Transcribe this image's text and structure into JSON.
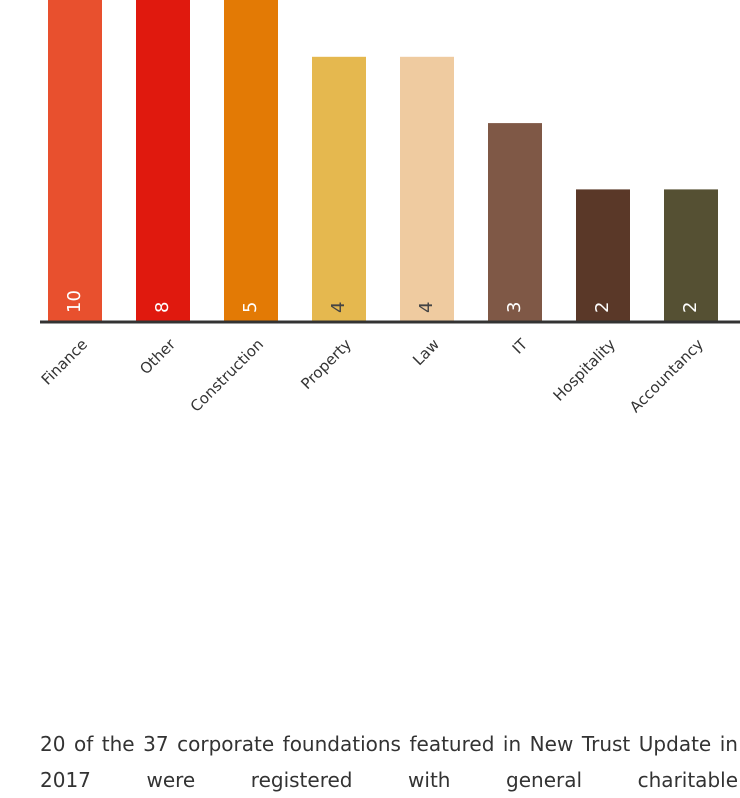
{
  "chart_data": {
    "type": "bar",
    "categories": [
      "Finance",
      "Other",
      "Construction",
      "Property",
      "Law",
      "IT",
      "Hospitality",
      "Accountancy"
    ],
    "values": [
      10,
      8,
      5,
      4,
      4,
      3,
      2,
      2
    ],
    "colors": [
      "#e8502e",
      "#e0190e",
      "#e37a05",
      "#e5b84f",
      "#efcba0",
      "#7f5846",
      "#5a3828",
      "#555033"
    ],
    "ylim": [
      0,
      10
    ]
  },
  "text": {
    "paragraph": "20 of the 37 corporate foundations featured in New Trust Update in 2017 were registered with general charitable"
  }
}
